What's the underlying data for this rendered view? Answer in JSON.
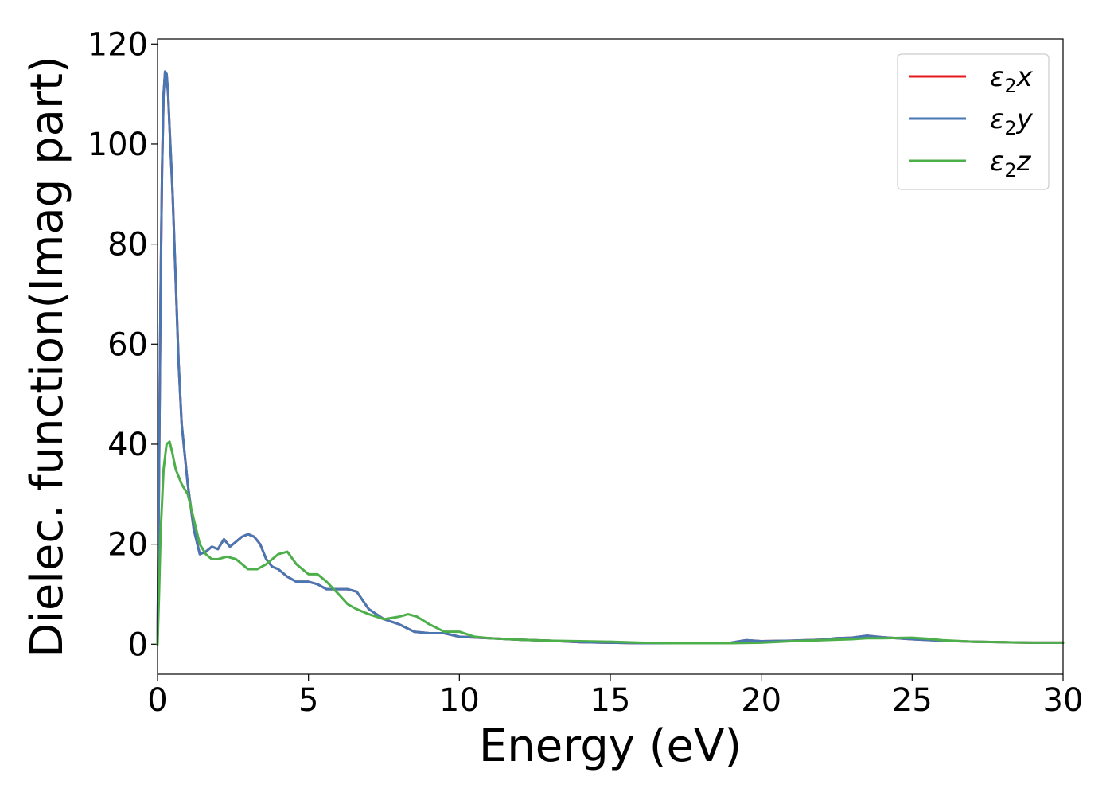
{
  "chart_data": {
    "type": "line",
    "xlabel": "Energy (eV)",
    "ylabel": "Dielec. function(Imag part)",
    "xlim": [
      0,
      30
    ],
    "ylim": [
      -6,
      121
    ],
    "xticks": [
      0,
      5,
      10,
      15,
      20,
      25,
      30
    ],
    "yticks": [
      0,
      20,
      40,
      60,
      80,
      100,
      120
    ],
    "grid": false,
    "legend_position": "top-right",
    "series": [
      {
        "name": "ε₂x",
        "legend_base": "ε",
        "legend_sub": "2",
        "legend_axis": "x",
        "color": "#e41a1c",
        "x": [
          0,
          0.05,
          0.1,
          0.15,
          0.2,
          0.25,
          0.3,
          0.35,
          0.4,
          0.5,
          0.6,
          0.7,
          0.8,
          1.0,
          1.2,
          1.4,
          1.6,
          1.8,
          2.0,
          2.2,
          2.4,
          2.6,
          2.8,
          3.0,
          3.2,
          3.4,
          3.6,
          3.8,
          4.0,
          4.3,
          4.6,
          5.0,
          5.3,
          5.6,
          6.0,
          6.3,
          6.6,
          7.0,
          7.5,
          8.0,
          8.5,
          9.0,
          9.5,
          10.0,
          11.0,
          12.0,
          13.0,
          14.0,
          15.0,
          16.0,
          17.0,
          18.0,
          19.0,
          19.5,
          20.0,
          21.0,
          22.0,
          22.5,
          23.0,
          23.5,
          24.0,
          24.5,
          25.0,
          26.0,
          27.0,
          28.0,
          29.0,
          30.0
        ],
        "values": [
          0,
          35,
          70,
          95,
          110,
          114.5,
          114,
          110,
          103,
          90,
          73,
          56,
          44,
          32,
          23,
          18,
          18.5,
          19.5,
          19,
          21,
          19.5,
          20.5,
          21.5,
          22,
          21.5,
          20,
          17,
          15.5,
          15,
          13.5,
          12.5,
          12.5,
          12,
          11,
          11,
          11,
          10.5,
          7,
          5,
          4,
          2.5,
          2.2,
          2.2,
          1.5,
          1.2,
          0.9,
          0.7,
          0.4,
          0.3,
          0.2,
          0.2,
          0.2,
          0.3,
          0.8,
          0.6,
          0.7,
          0.9,
          1.2,
          1.3,
          1.7,
          1.4,
          1.2,
          1.0,
          0.7,
          0.5,
          0.4,
          0.3,
          0.3
        ]
      },
      {
        "name": "ε₂y",
        "legend_base": "ε",
        "legend_sub": "2",
        "legend_axis": "y",
        "color": "#4877b4",
        "x": [
          0,
          0.05,
          0.1,
          0.15,
          0.2,
          0.25,
          0.3,
          0.35,
          0.4,
          0.5,
          0.6,
          0.7,
          0.8,
          1.0,
          1.2,
          1.4,
          1.6,
          1.8,
          2.0,
          2.2,
          2.4,
          2.6,
          2.8,
          3.0,
          3.2,
          3.4,
          3.6,
          3.8,
          4.0,
          4.3,
          4.6,
          5.0,
          5.3,
          5.6,
          6.0,
          6.3,
          6.6,
          7.0,
          7.5,
          8.0,
          8.5,
          9.0,
          9.5,
          10.0,
          11.0,
          12.0,
          13.0,
          14.0,
          15.0,
          16.0,
          17.0,
          18.0,
          19.0,
          19.5,
          20.0,
          21.0,
          22.0,
          22.5,
          23.0,
          23.5,
          24.0,
          24.5,
          25.0,
          26.0,
          27.0,
          28.0,
          29.0,
          30.0
        ],
        "values": [
          0,
          35,
          70,
          95,
          110,
          114.5,
          114,
          110,
          103,
          90,
          73,
          56,
          44,
          32,
          23,
          18,
          18.5,
          19.5,
          19,
          21,
          19.5,
          20.5,
          21.5,
          22,
          21.5,
          20,
          17,
          15.5,
          15,
          13.5,
          12.5,
          12.5,
          12,
          11,
          11,
          11,
          10.5,
          7,
          5,
          4,
          2.5,
          2.2,
          2.2,
          1.5,
          1.2,
          0.9,
          0.7,
          0.4,
          0.3,
          0.2,
          0.2,
          0.2,
          0.3,
          0.8,
          0.6,
          0.7,
          0.9,
          1.2,
          1.3,
          1.7,
          1.4,
          1.2,
          1.0,
          0.7,
          0.5,
          0.4,
          0.3,
          0.3
        ]
      },
      {
        "name": "ε₂z",
        "legend_base": "ε",
        "legend_sub": "2",
        "legend_axis": "z",
        "color": "#4daf4a",
        "x": [
          0,
          0.05,
          0.1,
          0.2,
          0.3,
          0.4,
          0.5,
          0.6,
          0.8,
          1.0,
          1.2,
          1.4,
          1.6,
          1.8,
          2.0,
          2.3,
          2.6,
          3.0,
          3.3,
          3.6,
          4.0,
          4.3,
          4.6,
          5.0,
          5.3,
          5.6,
          6.0,
          6.3,
          6.6,
          7.0,
          7.5,
          8.0,
          8.3,
          8.6,
          9.0,
          9.5,
          10.0,
          10.5,
          11.0,
          12.0,
          13.0,
          14.0,
          15.0,
          16.0,
          17.0,
          18.0,
          19.0,
          20.0,
          21.0,
          22.0,
          23.0,
          23.5,
          24.0,
          25.0,
          25.5,
          26.0,
          27.0,
          28.0,
          29.0,
          30.0
        ],
        "values": [
          0,
          10,
          22,
          35,
          40,
          40.5,
          38,
          35,
          32,
          30,
          25,
          20,
          18,
          17,
          17,
          17.5,
          17,
          15,
          15,
          16,
          18,
          18.5,
          16,
          14,
          14,
          12.5,
          10,
          8,
          7,
          6,
          5,
          5.5,
          6,
          5.5,
          4,
          2.5,
          2.5,
          1.5,
          1.2,
          0.9,
          0.7,
          0.6,
          0.5,
          0.3,
          0.2,
          0.2,
          0.2,
          0.3,
          0.6,
          0.8,
          1.0,
          1.2,
          1.2,
          1.3,
          1.1,
          0.8,
          0.5,
          0.4,
          0.3,
          0.3
        ]
      }
    ]
  }
}
